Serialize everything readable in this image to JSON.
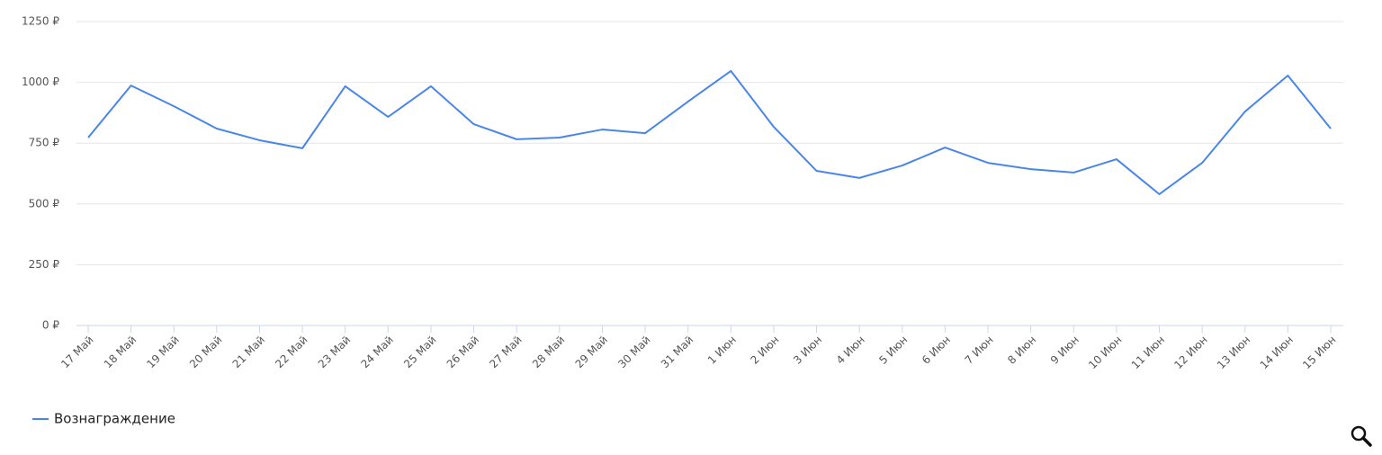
{
  "chart_data": {
    "type": "line",
    "categories": [
      "17 Май",
      "18 Май",
      "19 Май",
      "20 Май",
      "21 Май",
      "22 Май",
      "23 Май",
      "24 Май",
      "25 Май",
      "26 Май",
      "27 Май",
      "28 Май",
      "29 Май",
      "30 Май",
      "31 Май",
      "1 Июн",
      "2 Июн",
      "3 Июн",
      "4 Июн",
      "5 Июн",
      "6 Июн",
      "7 Июн",
      "8 Июн",
      "9 Июн",
      "10 Июн",
      "11 Июн",
      "12 Июн",
      "13 Июн",
      "14 Июн",
      "15 Июн"
    ],
    "series": [
      {
        "name": "Вознаграждение",
        "color": "#4a86e8",
        "values": [
          773,
          987,
          902,
          810,
          762,
          729,
          984,
          858,
          984,
          828,
          766,
          773,
          806,
          791,
          921,
          1047,
          817,
          636,
          607,
          658,
          732,
          669,
          643,
          629,
          684,
          540,
          669,
          880,
          1028,
          810
        ]
      }
    ],
    "ylim": [
      0,
      1250
    ],
    "yticks": [
      {
        "value": 0,
        "label": "0 ₽"
      },
      {
        "value": 250,
        "label": "250 ₽"
      },
      {
        "value": 500,
        "label": "500 ₽"
      },
      {
        "value": 750,
        "label": "750 ₽"
      },
      {
        "value": 1000,
        "label": "1000 ₽"
      },
      {
        "value": 1250,
        "label": "1250 ₽"
      }
    ],
    "grid": true
  }
}
